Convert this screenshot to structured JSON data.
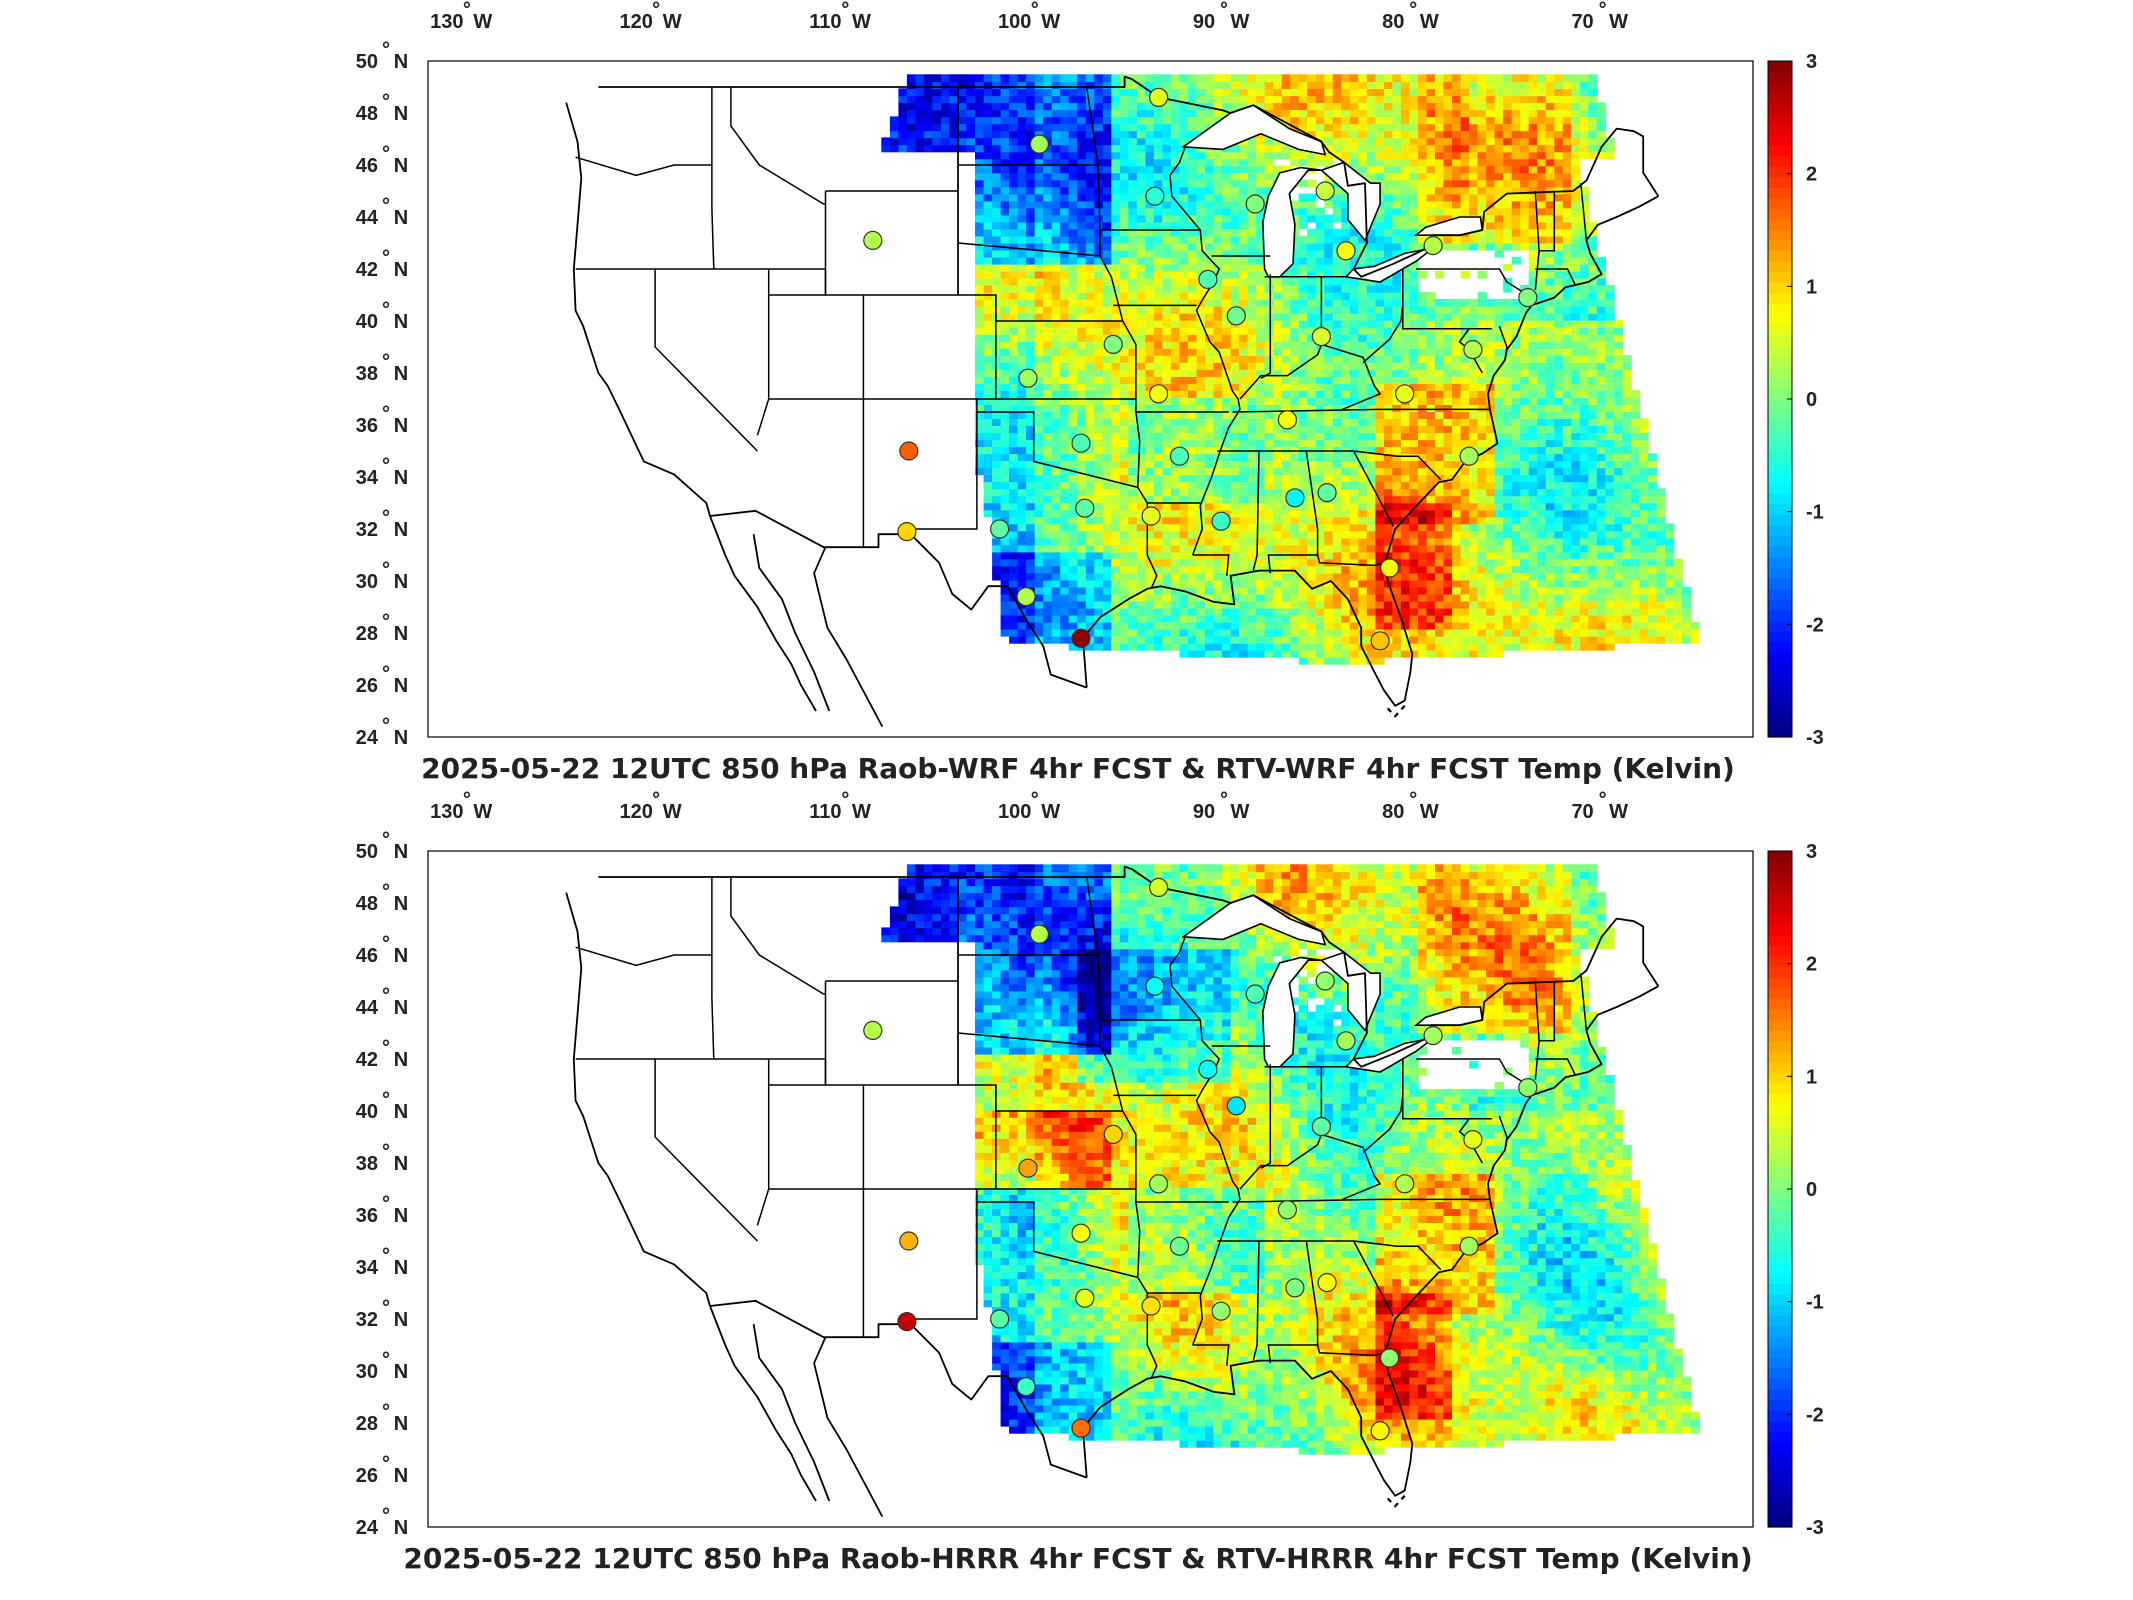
{
  "figure": {
    "panels": [
      {
        "title": "2025-05-22 12UTC 850 hPa Raob-WRF 4hr FCST & RTV-WRF 4hr FCST Temp (Kelvin)",
        "stations": [
          {
            "lon": -108.5,
            "lat": 43.1,
            "value": 0.3
          },
          {
            "lon": -99.7,
            "lat": 46.8,
            "value": 0.2
          },
          {
            "lon": -93.4,
            "lat": 48.6,
            "value": 0.6
          },
          {
            "lon": -93.6,
            "lat": 44.8,
            "value": -0.5
          },
          {
            "lon": -88.3,
            "lat": 44.5,
            "value": 0.0
          },
          {
            "lon": -84.6,
            "lat": 45.0,
            "value": 0.4
          },
          {
            "lon": -83.5,
            "lat": 42.7,
            "value": 0.7
          },
          {
            "lon": -78.9,
            "lat": 42.9,
            "value": 0.3
          },
          {
            "lon": -90.8,
            "lat": 41.6,
            "value": -0.3
          },
          {
            "lon": -89.3,
            "lat": 40.2,
            "value": -0.1
          },
          {
            "lon": -84.8,
            "lat": 39.4,
            "value": 0.5
          },
          {
            "lon": -73.9,
            "lat": 40.9,
            "value": 0.0
          },
          {
            "lon": -95.8,
            "lat": 39.1,
            "value": 0.0
          },
          {
            "lon": -100.3,
            "lat": 37.8,
            "value": 0.2
          },
          {
            "lon": -93.4,
            "lat": 37.2,
            "value": 0.7
          },
          {
            "lon": -86.6,
            "lat": 36.2,
            "value": 0.7
          },
          {
            "lon": -80.4,
            "lat": 37.2,
            "value": 0.6
          },
          {
            "lon": -76.8,
            "lat": 38.9,
            "value": 0.3
          },
          {
            "lon": -106.6,
            "lat": 35.0,
            "value": 1.7
          },
          {
            "lon": -97.5,
            "lat": 35.3,
            "value": -0.3
          },
          {
            "lon": -92.3,
            "lat": 34.8,
            "value": -0.3
          },
          {
            "lon": -77.0,
            "lat": 34.8,
            "value": 0.2
          },
          {
            "lon": -106.7,
            "lat": 31.9,
            "value": 1.0
          },
          {
            "lon": -101.8,
            "lat": 32.0,
            "value": -0.2
          },
          {
            "lon": -97.3,
            "lat": 32.8,
            "value": -0.2
          },
          {
            "lon": -93.8,
            "lat": 32.5,
            "value": 0.6
          },
          {
            "lon": -90.1,
            "lat": 32.3,
            "value": -0.4
          },
          {
            "lon": -86.2,
            "lat": 33.2,
            "value": -0.8
          },
          {
            "lon": -84.5,
            "lat": 33.4,
            "value": -0.2
          },
          {
            "lon": -81.2,
            "lat": 30.5,
            "value": 0.7
          },
          {
            "lon": -100.4,
            "lat": 29.4,
            "value": 0.3
          },
          {
            "lon": -97.5,
            "lat": 27.8,
            "value": 2.9
          },
          {
            "lon": -81.7,
            "lat": 27.7,
            "value": 1.1
          }
        ]
      },
      {
        "title": "2025-05-22 12UTC 850 hPa Raob-HRRR 4hr FCST & RTV-HRRR 4hr FCST Temp (Kelvin)",
        "stations": [
          {
            "lon": -108.5,
            "lat": 43.1,
            "value": 0.3
          },
          {
            "lon": -99.7,
            "lat": 46.8,
            "value": 0.3
          },
          {
            "lon": -93.4,
            "lat": 48.6,
            "value": 0.5
          },
          {
            "lon": -93.6,
            "lat": 44.8,
            "value": -0.7
          },
          {
            "lon": -88.3,
            "lat": 44.5,
            "value": -0.3
          },
          {
            "lon": -84.6,
            "lat": 45.0,
            "value": 0.1
          },
          {
            "lon": -83.5,
            "lat": 42.7,
            "value": 0.2
          },
          {
            "lon": -78.9,
            "lat": 42.9,
            "value": 0.2
          },
          {
            "lon": -90.8,
            "lat": 41.6,
            "value": -0.7
          },
          {
            "lon": -89.3,
            "lat": 40.2,
            "value": -0.9
          },
          {
            "lon": -84.8,
            "lat": 39.4,
            "value": -0.2
          },
          {
            "lon": -73.9,
            "lat": 40.9,
            "value": 0.1
          },
          {
            "lon": -95.8,
            "lat": 39.1,
            "value": 1.0
          },
          {
            "lon": -100.3,
            "lat": 37.8,
            "value": 1.3
          },
          {
            "lon": -93.4,
            "lat": 37.2,
            "value": 0.2
          },
          {
            "lon": -86.6,
            "lat": 36.2,
            "value": 0.1
          },
          {
            "lon": -80.4,
            "lat": 37.2,
            "value": 0.3
          },
          {
            "lon": -76.8,
            "lat": 38.9,
            "value": 0.6
          },
          {
            "lon": -106.6,
            "lat": 35.0,
            "value": 1.2
          },
          {
            "lon": -97.5,
            "lat": 35.3,
            "value": 0.7
          },
          {
            "lon": -92.3,
            "lat": 34.8,
            "value": -0.1
          },
          {
            "lon": -77.0,
            "lat": 34.8,
            "value": 0.2
          },
          {
            "lon": -106.7,
            "lat": 31.9,
            "value": 2.6
          },
          {
            "lon": -101.8,
            "lat": 32.0,
            "value": -0.2
          },
          {
            "lon": -97.3,
            "lat": 32.8,
            "value": 0.6
          },
          {
            "lon": -93.8,
            "lat": 32.5,
            "value": 0.9
          },
          {
            "lon": -90.1,
            "lat": 32.3,
            "value": 0.1
          },
          {
            "lon": -86.2,
            "lat": 33.2,
            "value": 0.0
          },
          {
            "lon": -84.5,
            "lat": 33.4,
            "value": 0.7
          },
          {
            "lon": -81.2,
            "lat": 30.5,
            "value": 0.1
          },
          {
            "lon": -100.4,
            "lat": 29.4,
            "value": -0.4
          },
          {
            "lon": -97.5,
            "lat": 27.8,
            "value": 1.6
          },
          {
            "lon": -81.7,
            "lat": 27.7,
            "value": 0.8
          }
        ]
      }
    ],
    "lon_ticks": [
      "130",
      "120",
      "110",
      "100",
      "90",
      "80",
      "70"
    ],
    "lon_hemisphere": "W",
    "lat_ticks": [
      "50",
      "48",
      "46",
      "44",
      "42",
      "40",
      "38",
      "36",
      "34",
      "32",
      "30",
      "28",
      "26",
      "24"
    ],
    "lat_hemisphere": "N",
    "degree_mark": "°",
    "colorbar": {
      "ticks": [
        "3",
        "2",
        "1",
        "0",
        "-1",
        "-2",
        "-3"
      ],
      "range": [
        -3,
        3
      ],
      "colormap": "jet"
    },
    "colors": {
      "state_lines": "#000000",
      "station_outline": "#333333"
    }
  }
}
